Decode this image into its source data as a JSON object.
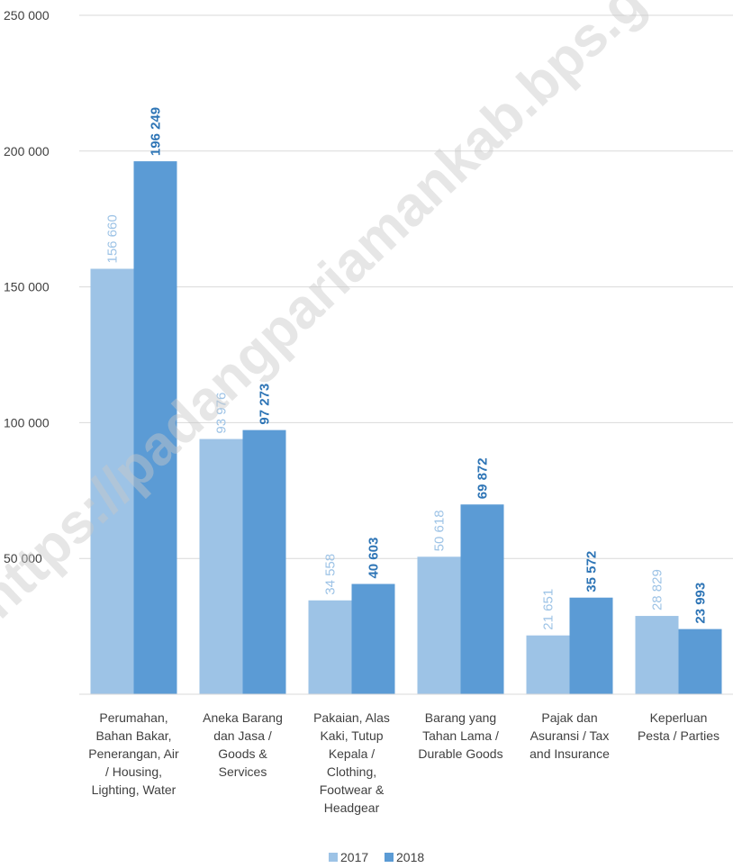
{
  "chart_data": {
    "type": "bar",
    "categories": [
      [
        "Perumahan,",
        "Bahan Bakar,",
        "Penerangan, Air",
        "/ Housing,",
        "Lighting, Water"
      ],
      [
        "Aneka Barang",
        "dan Jasa /",
        "Goods &",
        "Services"
      ],
      [
        "Pakaian, Alas",
        "Kaki, Tutup",
        "Kepala /",
        "Clothing,",
        "Footwear &",
        "Headgear"
      ],
      [
        "Barang yang",
        "Tahan Lama /",
        "Durable Goods"
      ],
      [
        "Pajak dan",
        "Asuransi / Tax",
        "and Insurance"
      ],
      [
        "Keperluan",
        "Pesta / Parties"
      ]
    ],
    "series": [
      {
        "name": "2017",
        "color": "#9DC3E6",
        "label_color": "#9DC3E6",
        "values": [
          156660,
          93976,
          34558,
          50618,
          21651,
          28829
        ],
        "labels": [
          "156 660",
          "93 976",
          "34 558",
          "50 618",
          "21 651",
          "28 829"
        ]
      },
      {
        "name": "2018",
        "color": "#5B9BD5",
        "label_color": "#2E75B6",
        "values": [
          196249,
          97273,
          40603,
          69872,
          35572,
          23993
        ],
        "labels": [
          "196 249",
          "97 273",
          "40 603",
          "69 872",
          "35 572",
          "23 993"
        ]
      }
    ],
    "ylim": [
      0,
      250000
    ],
    "yticks": [
      50000,
      100000,
      150000,
      200000,
      250000
    ],
    "ytick_labels": [
      "50 000",
      "100 000",
      "150 000",
      "200 000",
      "250 000"
    ],
    "grid": true,
    "legend_position": "bottom-center",
    "title": "",
    "xlabel": "",
    "ylabel": ""
  },
  "watermark": {
    "text": "https://padangpariamankab.bps.go.id"
  }
}
